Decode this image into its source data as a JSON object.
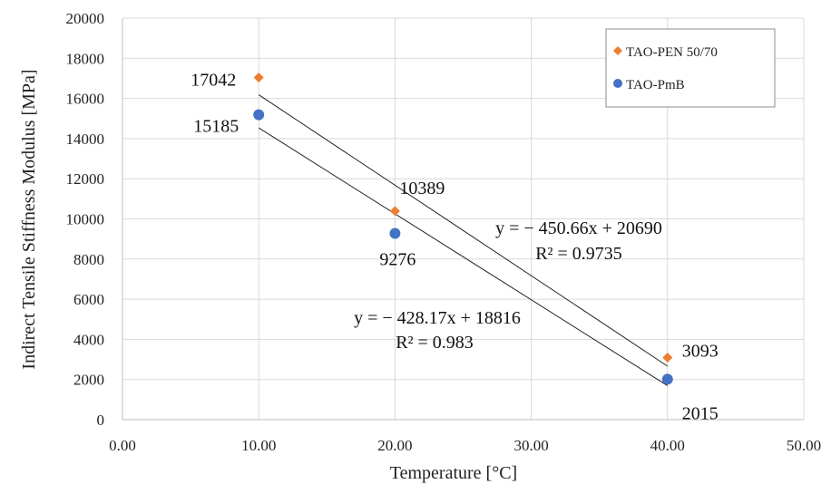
{
  "chart_data": {
    "type": "scatter",
    "title": "",
    "xlabel": "Temperature [°C]",
    "ylabel": "Indirect Tensile Stiffness Modulus [MPa]",
    "xlim": [
      0,
      50
    ],
    "ylim": [
      0,
      20000
    ],
    "xticks": [
      0,
      10,
      20,
      30,
      40,
      50
    ],
    "xtick_labels": [
      "0.00",
      "10.00",
      "20.00",
      "30.00",
      "40.00",
      "50.00"
    ],
    "yticks": [
      0,
      2000,
      4000,
      6000,
      8000,
      10000,
      12000,
      14000,
      16000,
      18000,
      20000
    ],
    "ytick_labels": [
      "0",
      "2000",
      "4000",
      "6000",
      "8000",
      "10000",
      "12000",
      "14000",
      "16000",
      "18000",
      "20000"
    ],
    "grid": true,
    "legend_position": "top-right",
    "series": [
      {
        "name": "TAO-PEN 50/70",
        "marker": "diamond",
        "color": "#ED7D31",
        "x": [
          10,
          20,
          40
        ],
        "y": [
          17042,
          10389,
          3093
        ],
        "labels": [
          "17042",
          "10389",
          "3093"
        ],
        "trendline": {
          "slope": -450.66,
          "intercept": 20690,
          "equation": "y = − 450.66x + 20690",
          "r2": "R² = 0.9735"
        }
      },
      {
        "name": "TAO-PmB",
        "marker": "circle",
        "color": "#4472C4",
        "x": [
          10,
          20,
          40
        ],
        "y": [
          15185,
          9276,
          2015
        ],
        "labels": [
          "15185",
          "9276",
          "2015"
        ],
        "trendline": {
          "slope": -428.17,
          "intercept": 18816,
          "equation": "y = − 428.17x + 18816",
          "r2": "R² = 0.983"
        }
      }
    ]
  }
}
